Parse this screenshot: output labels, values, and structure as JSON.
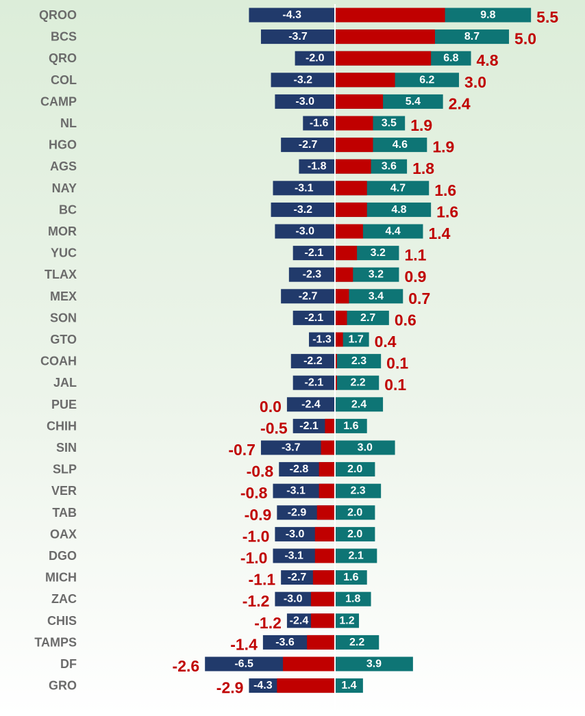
{
  "chart_data": {
    "type": "diverging_bar",
    "categories": [
      "QROO",
      "BCS",
      "QRO",
      "COL",
      "CAMP",
      "NL",
      "HGO",
      "AGS",
      "NAY",
      "BC",
      "MOR",
      "YUC",
      "TLAX",
      "MEX",
      "SON",
      "GTO",
      "COAH",
      "JAL",
      "PUE",
      "CHIH",
      "SIN",
      "SLP",
      "VER",
      "TAB",
      "OAX",
      "DGO",
      "MICH",
      "ZAC",
      "CHIS",
      "TAMPS",
      "DF",
      "GRO"
    ],
    "series": [
      {
        "color": "#213a6b",
        "values": [
          -4.3,
          -3.7,
          -2.0,
          -3.2,
          -3.0,
          -1.6,
          -2.7,
          -1.8,
          -3.1,
          -3.2,
          -3.0,
          -2.1,
          -2.3,
          -2.7,
          -2.1,
          -1.3,
          -2.2,
          -2.1,
          -2.4,
          -2.1,
          -3.7,
          -2.8,
          -3.1,
          -2.9,
          -3.0,
          -3.1,
          -2.7,
          -3.0,
          -2.4,
          -3.6,
          -6.5,
          -4.3
        ],
        "value_labels": [
          "-4.3",
          "-3.7",
          "-2.0",
          "-3.2",
          "-3.0",
          "-1.6",
          "-2.7",
          "-1.8",
          "-3.1",
          "-3.2",
          "-3.0",
          "-2.1",
          "-2.3",
          "-2.7",
          "-2.1",
          "-1.3",
          "-2.2",
          "-2.1",
          "-2.4",
          "-2.1",
          "-3.7",
          "-2.8",
          "-3.1",
          "-2.9",
          "-3.0",
          "-3.1",
          "-2.7",
          "-3.0",
          "-2.4",
          "-3.6",
          "-6.5",
          "-4.3"
        ]
      },
      {
        "color": "#0e7575",
        "values": [
          9.8,
          8.7,
          6.8,
          6.2,
          5.4,
          3.5,
          4.6,
          3.6,
          4.7,
          4.8,
          4.4,
          3.2,
          3.2,
          3.4,
          2.7,
          1.7,
          2.3,
          2.2,
          2.4,
          1.6,
          3.0,
          2.0,
          2.3,
          2.0,
          2.0,
          2.1,
          1.6,
          1.8,
          1.2,
          2.2,
          3.9,
          1.4
        ],
        "value_labels": [
          "9.8",
          "8.7",
          "6.8",
          "6.2",
          "5.4",
          "3.5",
          "4.6",
          "3.6",
          "4.7",
          "4.8",
          "4.4",
          "3.2",
          "3.2",
          "3.4",
          "2.7",
          "1.7",
          "2.3",
          "2.2",
          "2.4",
          "1.6",
          "3.0",
          "2.0",
          "2.3",
          "2.0",
          "2.0",
          "2.1",
          "1.6",
          "1.8",
          "1.2",
          "2.2",
          "3.9",
          "1.4"
        ]
      },
      {
        "color": "#c00000",
        "values": [
          5.5,
          5.0,
          4.8,
          3.0,
          2.4,
          1.9,
          1.9,
          1.8,
          1.6,
          1.6,
          1.4,
          1.1,
          0.9,
          0.7,
          0.6,
          0.4,
          0.1,
          0.1,
          0.0,
          -0.5,
          -0.7,
          -0.8,
          -0.8,
          -0.9,
          -1.0,
          -1.0,
          -1.1,
          -1.2,
          -1.2,
          -1.4,
          -2.6,
          -2.9
        ],
        "value_labels": [
          "5.5",
          "5.0",
          "4.8",
          "3.0",
          "2.4",
          "1.9",
          "1.9",
          "1.8",
          "1.6",
          "1.6",
          "1.4",
          "1.1",
          "0.9",
          "0.7",
          "0.6",
          "0.4",
          "0.1",
          "0.1",
          "0.0",
          "-0.5",
          "-0.7",
          "-0.8",
          "-0.8",
          "-0.9",
          "-1.0",
          "-1.0",
          "-1.1",
          "-1.2",
          "-1.2",
          "-1.4",
          "-2.6",
          "-2.9"
        ]
      }
    ],
    "xlim": [
      -7,
      10
    ]
  }
}
